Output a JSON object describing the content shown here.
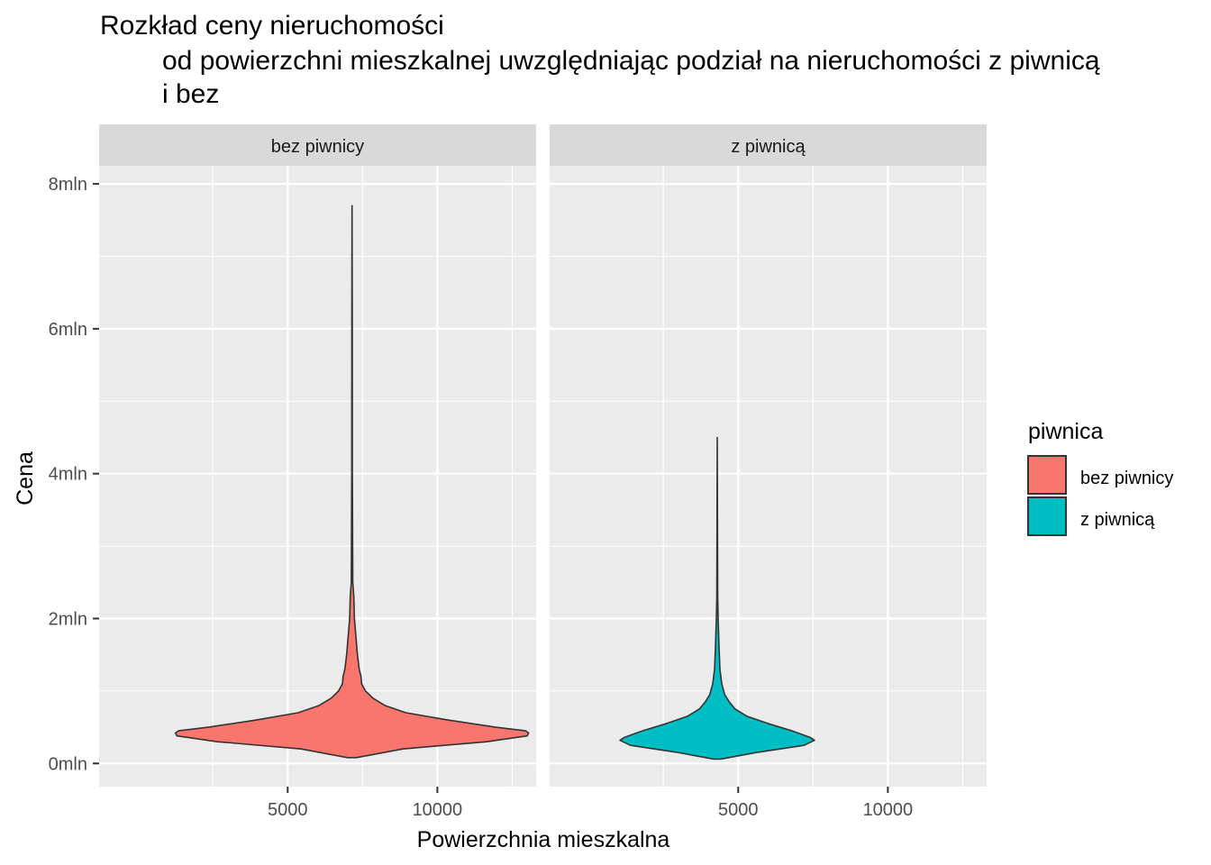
{
  "title_lines": [
    "Rozkład ceny nieruchomości",
    "od powierzchni mieszkalnej uwzględniając podział na nieruchomości z piwnicą",
    "i bez"
  ],
  "chart_data": {
    "type": "violin",
    "title": "Rozkład ceny nieruchomości\n\tod powierzchni mieszkalnej uwzględniając podział na nieruchomości z piwnicą\n\ti bez",
    "xlabel": "Powierzchnia mieszkalna",
    "ylabel": "Cena",
    "x_ticks": [
      "5000",
      "10000"
    ],
    "x_tick_values": [
      5000,
      10000
    ],
    "y_ticks": [
      "0mln",
      "2mln",
      "4mln",
      "6mln",
      "8mln"
    ],
    "y_tick_values": [
      0,
      2000000,
      4000000,
      6000000,
      8000000
    ],
    "xlim": [
      -1300,
      13300
    ],
    "ylim": [
      -320000,
      8250000
    ],
    "grid": true,
    "legend": {
      "title": "piwnica",
      "position": "right",
      "entries": [
        {
          "label": "bez piwnicy",
          "color": "#F8766D"
        },
        {
          "label": "z piwnicą",
          "color": "#00BFC4"
        }
      ]
    },
    "facets": [
      {
        "label": "bez piwnicy",
        "color": "#F8766D",
        "center_x": 7150,
        "profile": [
          [
            80000,
            150
          ],
          [
            200000,
            1700
          ],
          [
            300000,
            4500
          ],
          [
            380000,
            5850
          ],
          [
            420000,
            5900
          ],
          [
            450000,
            5800
          ],
          [
            500000,
            4800
          ],
          [
            600000,
            3200
          ],
          [
            700000,
            1800
          ],
          [
            800000,
            1100
          ],
          [
            900000,
            700
          ],
          [
            1000000,
            450
          ],
          [
            1100000,
            320
          ],
          [
            1200000,
            300
          ],
          [
            1300000,
            240
          ],
          [
            1500000,
            180
          ],
          [
            1800000,
            120
          ],
          [
            2000000,
            80
          ],
          [
            2300000,
            60
          ],
          [
            2500000,
            25
          ],
          [
            3000000,
            20
          ],
          [
            3600000,
            15
          ],
          [
            4000000,
            10
          ],
          [
            6000000,
            8
          ],
          [
            7700000,
            0
          ]
        ]
      },
      {
        "label": "z piwnicą",
        "color": "#00BFC4",
        "center_x": 4300,
        "profile": [
          [
            60000,
            120
          ],
          [
            150000,
            1300
          ],
          [
            250000,
            2900
          ],
          [
            320000,
            3250
          ],
          [
            360000,
            3100
          ],
          [
            450000,
            2500
          ],
          [
            550000,
            1700
          ],
          [
            650000,
            1000
          ],
          [
            750000,
            600
          ],
          [
            850000,
            400
          ],
          [
            950000,
            250
          ],
          [
            1100000,
            150
          ],
          [
            1300000,
            90
          ],
          [
            1600000,
            60
          ],
          [
            2000000,
            30
          ],
          [
            2300000,
            15
          ],
          [
            3000000,
            10
          ],
          [
            4500000,
            0
          ]
        ]
      }
    ]
  }
}
